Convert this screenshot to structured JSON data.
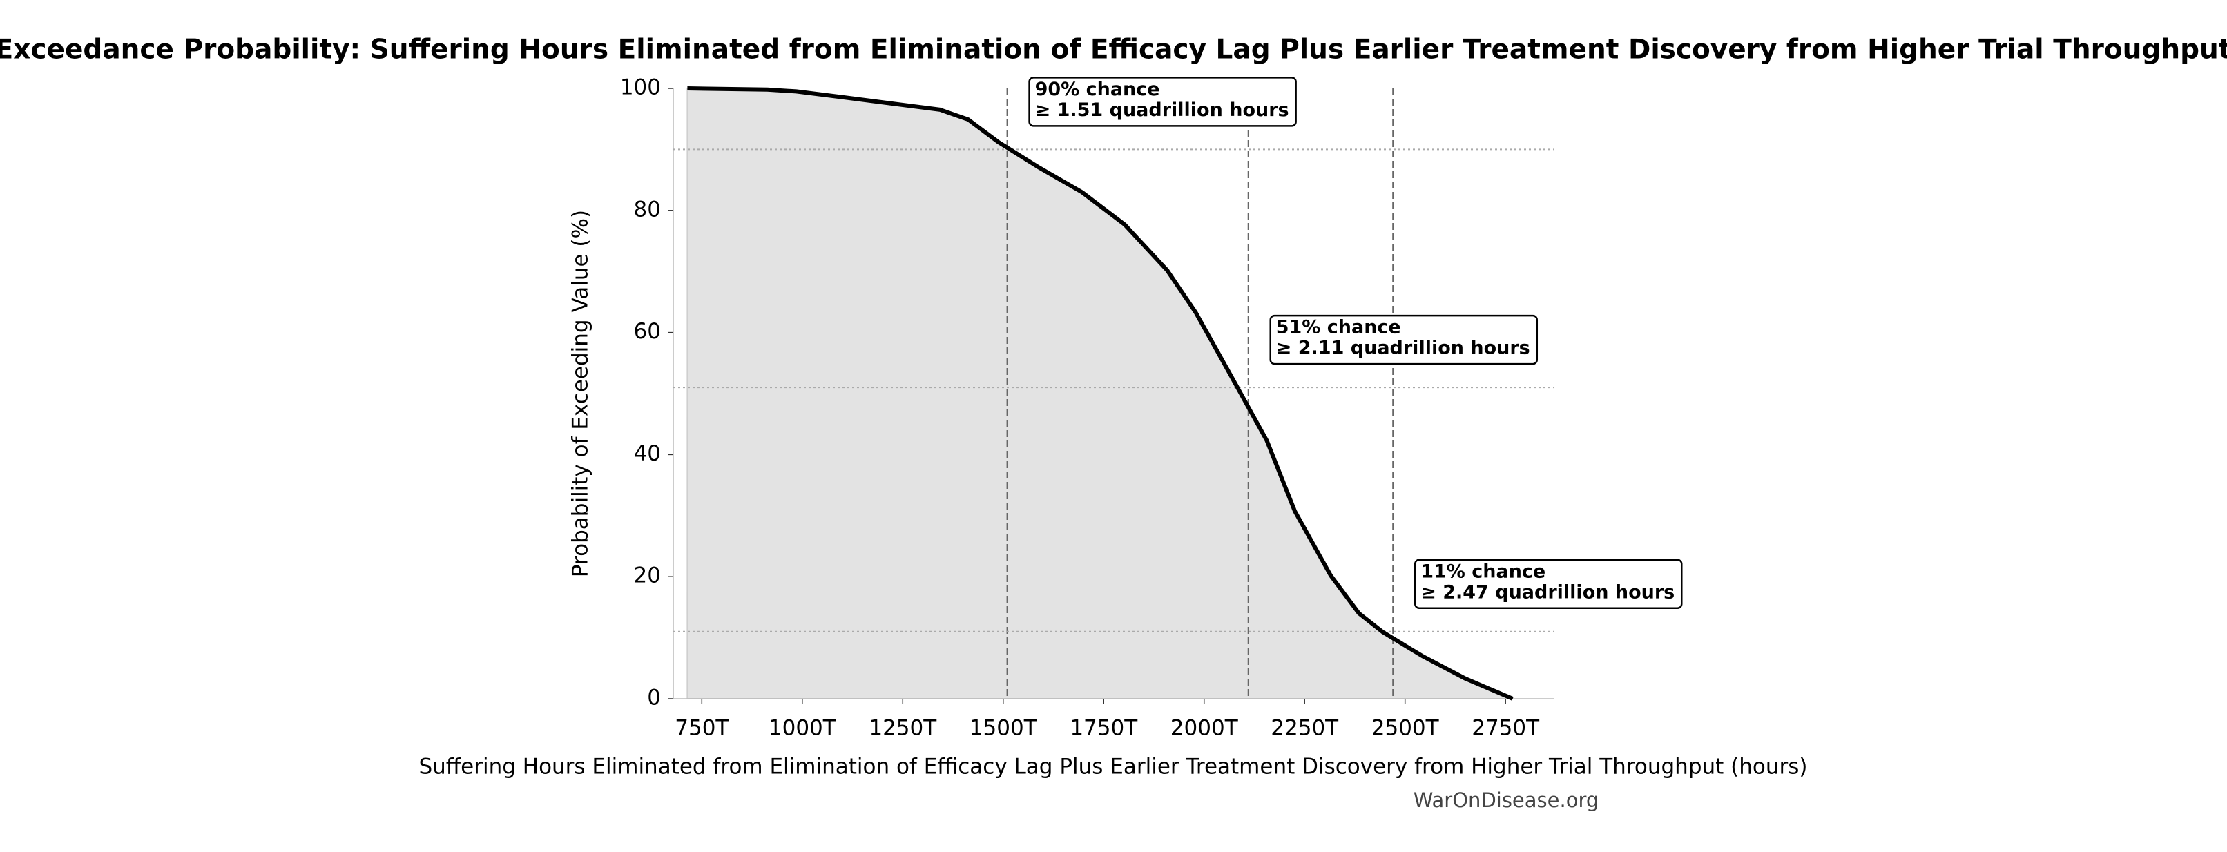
{
  "chart_data": {
    "type": "line",
    "title": "Exceedance Probability: Suffering Hours Eliminated from Elimination of Efficacy Lag Plus Earlier Treatment Discovery from Higher Trial Throughput",
    "xlabel": "Suffering Hours Eliminated from Elimination of Efficacy Lag Plus Earlier Treatment Discovery from Higher Trial Throughput (hours)",
    "ylabel": "Probability of Exceeding Value (%)",
    "watermark": "WarOnDisease.org",
    "x": [
      714,
      913,
      985,
      1095,
      1237,
      1343,
      1413,
      1488,
      1590,
      1696,
      1802,
      1908,
      1979,
      2078,
      2156,
      2226,
      2315,
      2385,
      2445,
      2543,
      2650,
      2768
    ],
    "series": [
      {
        "name": "Exceedance",
        "color": "#000000",
        "values": [
          100,
          99.8,
          99.5,
          98.6,
          97.4,
          96.5,
          94.9,
          91.2,
          87,
          83,
          77.7,
          70.2,
          63.3,
          51.6,
          42.3,
          30.7,
          20.2,
          14,
          10.9,
          7,
          3.3,
          0
        ]
      }
    ],
    "fill_color": "#e3e3e3",
    "xlim": [
      679,
      2870
    ],
    "ylim": [
      0,
      100
    ],
    "xticks": [
      {
        "value": 750,
        "label": "750T"
      },
      {
        "value": 1000,
        "label": "1000T"
      },
      {
        "value": 1250,
        "label": "1250T"
      },
      {
        "value": 1500,
        "label": "1500T"
      },
      {
        "value": 1750,
        "label": "1750T"
      },
      {
        "value": 2000,
        "label": "2000T"
      },
      {
        "value": 2250,
        "label": "2250T"
      },
      {
        "value": 2500,
        "label": "2500T"
      },
      {
        "value": 2750,
        "label": "2750T"
      }
    ],
    "yticks": [
      0,
      20,
      40,
      60,
      80,
      100
    ],
    "annotations": [
      {
        "x": 1510,
        "y": 90,
        "lines": [
          "90% chance",
          "≥ 1.51 quadrillion hours"
        ]
      },
      {
        "x": 2110,
        "y": 51,
        "lines": [
          "51% chance",
          "≥ 2.11 quadrillion hours"
        ]
      },
      {
        "x": 2470,
        "y": 11,
        "lines": [
          "11% chance",
          "≥ 2.47 quadrillion hours"
        ]
      }
    ]
  }
}
